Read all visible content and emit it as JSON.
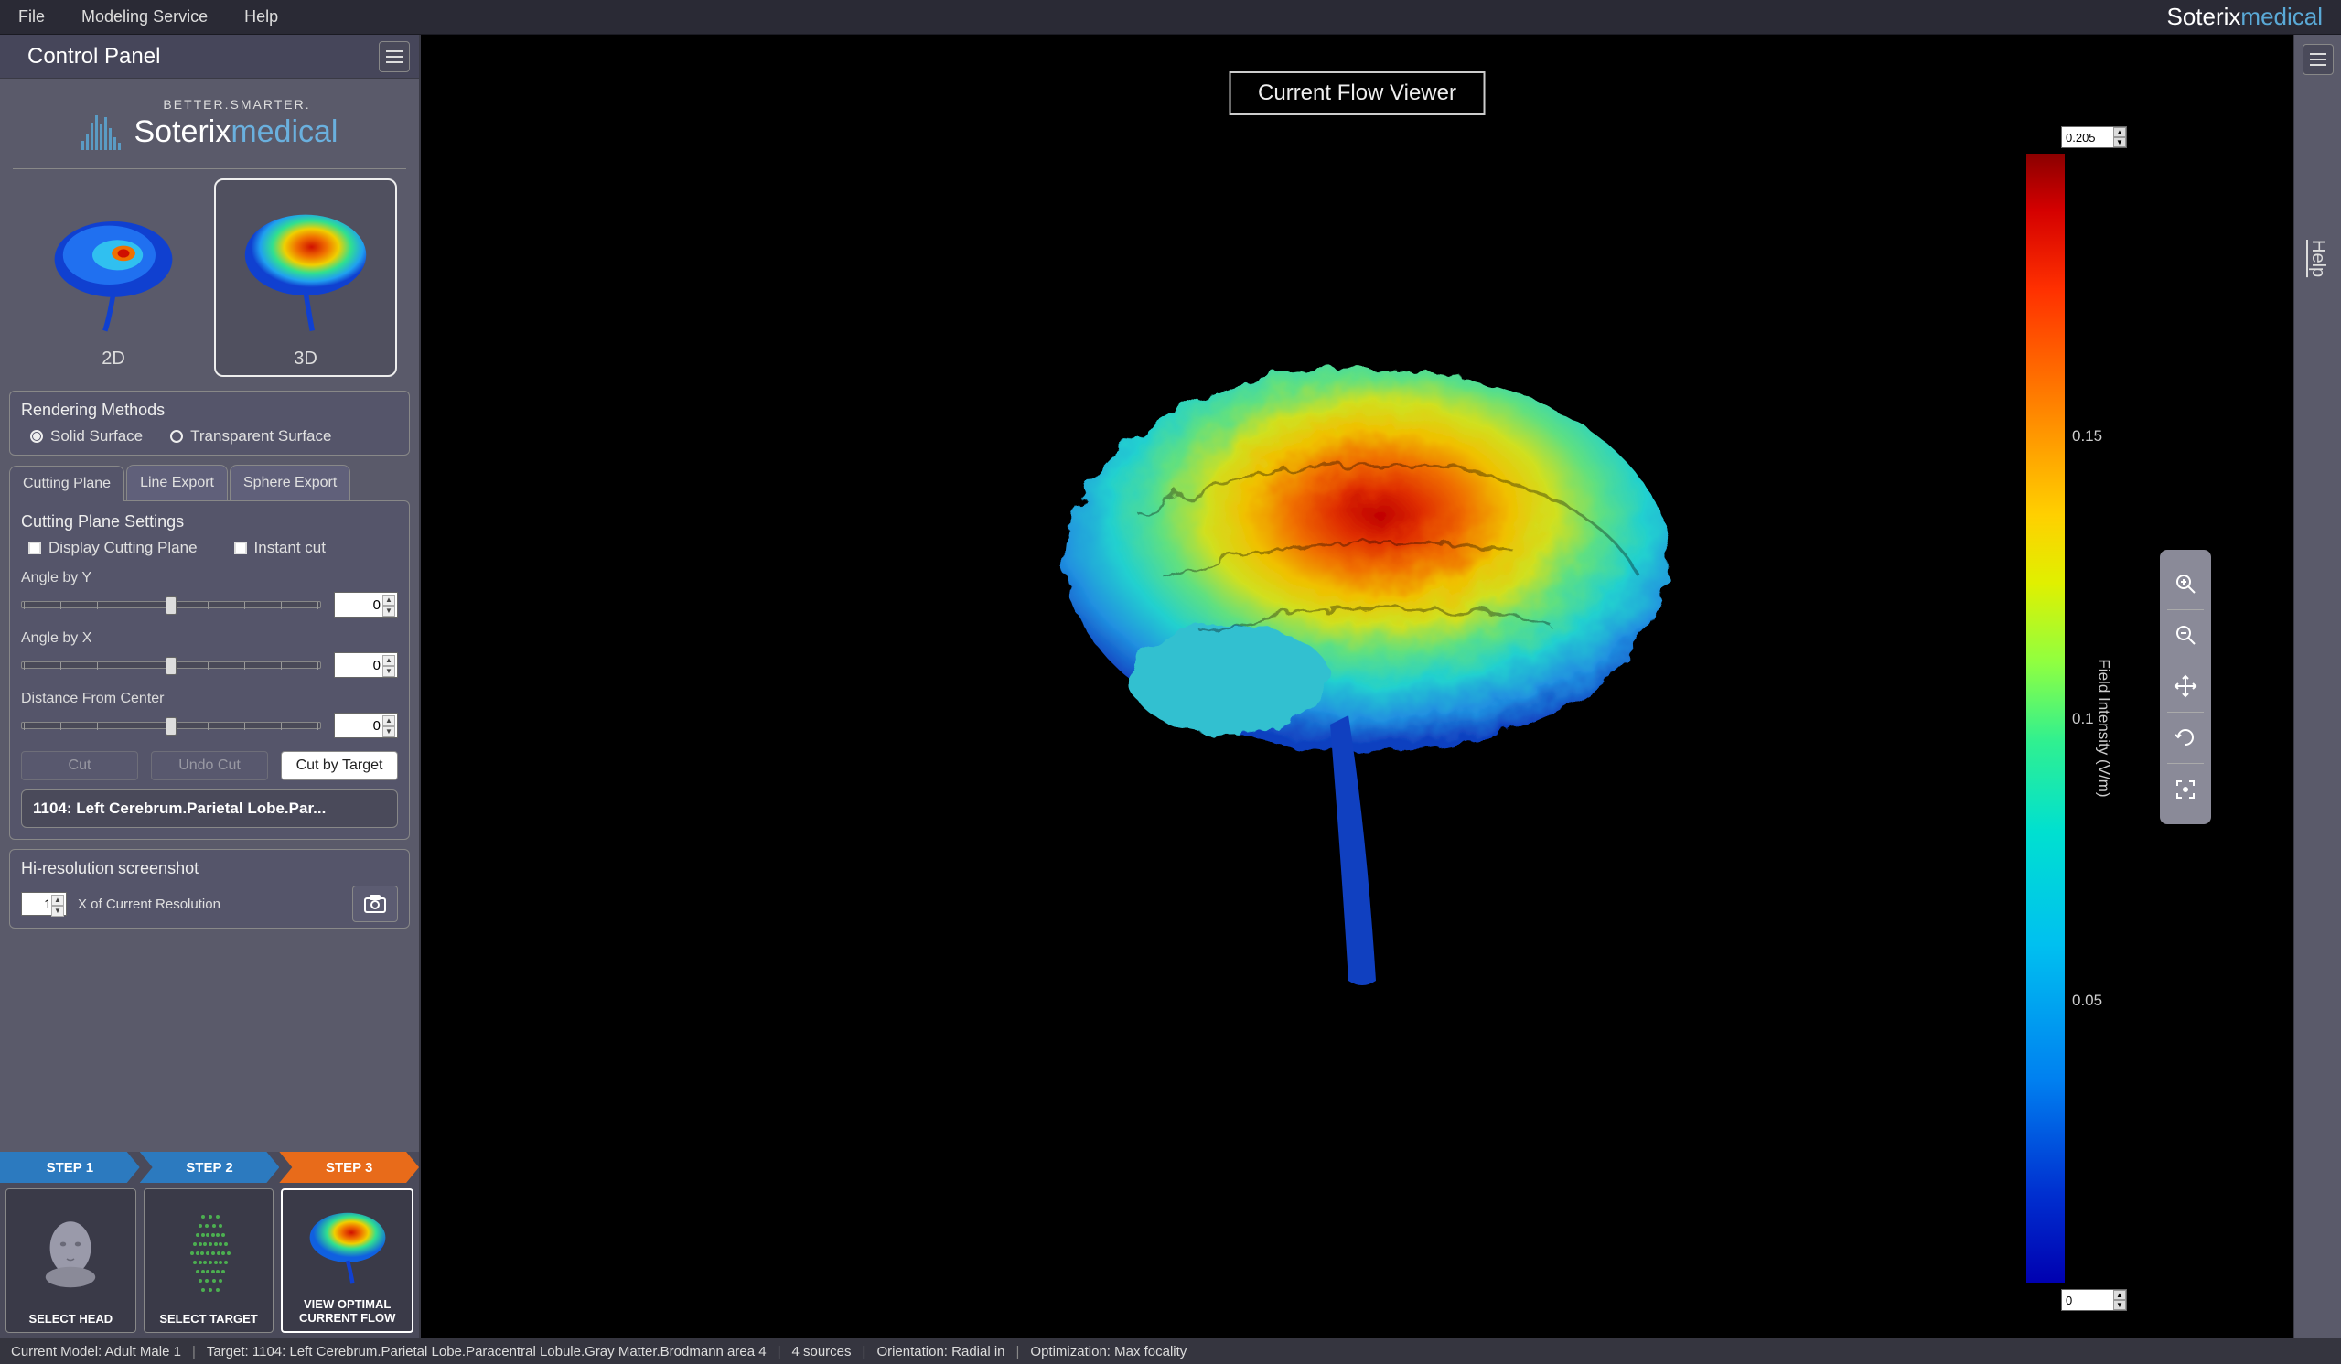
{
  "menubar": {
    "items": [
      "File",
      "Modeling Service",
      "Help"
    ],
    "brand_main": "Soterix",
    "brand_sub": "medical"
  },
  "control_panel": {
    "title": "Control Panel",
    "logo": {
      "tagline": "BETTER.SMARTER.",
      "main": "Soterix",
      "sub": "medical"
    },
    "view_toggles": {
      "items": [
        {
          "label": "2D",
          "selected": false
        },
        {
          "label": "3D",
          "selected": true
        }
      ]
    },
    "rendering": {
      "title": "Rendering Methods",
      "options": [
        {
          "label": "Solid Surface",
          "selected": true
        },
        {
          "label": "Transparent Surface",
          "selected": false
        }
      ]
    },
    "tabs": {
      "items": [
        {
          "label": "Cutting Plane",
          "active": true
        },
        {
          "label": "Line Export",
          "active": false
        },
        {
          "label": "Sphere Export",
          "active": false
        }
      ]
    },
    "cutting": {
      "title": "Cutting Plane Settings",
      "checks": [
        {
          "label": "Display Cutting Plane",
          "checked": false
        },
        {
          "label": "Instant cut",
          "checked": false
        }
      ],
      "sliders": [
        {
          "label": "Angle by Y",
          "value": 0
        },
        {
          "label": "Angle by X",
          "value": 0
        },
        {
          "label": "Distance From Center",
          "value": 0
        }
      ],
      "buttons": {
        "cut": "Cut",
        "undo": "Undo Cut",
        "cut_by_target": "Cut by Target"
      },
      "target": "1104: Left Cerebrum.Parietal Lobe.Par..."
    },
    "hires": {
      "title": "Hi-resolution screenshot",
      "multiplier": 1,
      "suffix": "X of Current Resolution"
    }
  },
  "steps": {
    "chips": [
      "STEP 1",
      "STEP 2",
      "STEP 3"
    ],
    "active_index": 2,
    "cards": [
      {
        "caption": "SELECT HEAD"
      },
      {
        "caption": "SELECT TARGET"
      },
      {
        "caption": "VIEW OPTIMAL CURRENT FLOW"
      }
    ]
  },
  "viewer": {
    "title": "Current Flow Viewer",
    "tools": [
      "zoom-in",
      "zoom-out",
      "pan",
      "rotate",
      "fullscreen"
    ],
    "colorbar": {
      "max": 0.205,
      "min": 0,
      "ticks": [
        {
          "label": "0.15",
          "pos_pct": 25
        },
        {
          "label": "0.1",
          "pos_pct": 50
        },
        {
          "label": "0.05",
          "pos_pct": 75
        }
      ],
      "axis_label": "Field Intensity (V/m)",
      "gradient_colors": [
        "#8b0000",
        "#d40000",
        "#ff3000",
        "#ff8000",
        "#ffd000",
        "#e0f000",
        "#90ff40",
        "#30f090",
        "#00e0d0",
        "#00c0f0",
        "#0080f0",
        "#0030d0",
        "#0000b0"
      ]
    }
  },
  "right_rail": {
    "help": "Help"
  },
  "statusbar": {
    "segments": [
      "Current Model: Adult Male 1",
      "Target: 1104: Left Cerebrum.Parietal Lobe.Paracentral Lobule.Gray Matter.Brodmann area 4",
      "4 sources",
      "Orientation: Radial in",
      "Optimization: Max focality"
    ]
  }
}
